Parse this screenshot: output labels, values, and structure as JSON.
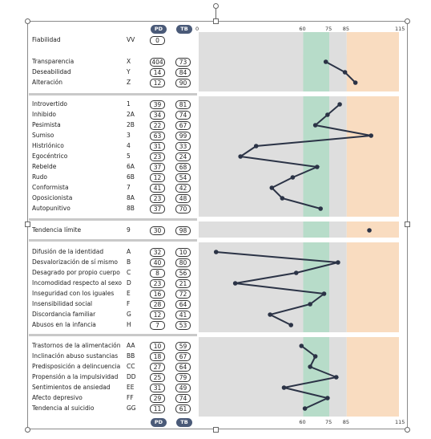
{
  "header": {
    "pd_label": "PD",
    "tb_label": "TB"
  },
  "footer": {
    "pd_label": "PD",
    "tb_label": "TB"
  },
  "scale": {
    "min_label": "0",
    "ticks": [
      60,
      75,
      85,
      115
    ]
  },
  "colors": {
    "pill": "#4a5a78",
    "gray_zone": "#dedede",
    "green_zone": "#b7dcc9",
    "orange_zone": "#f9dcc0",
    "line": "#2b3346"
  },
  "sections": [
    {
      "id": "validity",
      "rows": [
        {
          "name": "Fiabilidad",
          "code": "VV",
          "pd": "0",
          "tb": null
        }
      ]
    },
    {
      "id": "control",
      "rows": [
        {
          "name": "Transparencia",
          "code": "X",
          "pd": "404",
          "tb": "73"
        },
        {
          "name": "Deseabilidad",
          "code": "Y",
          "pd": "14",
          "tb": "84"
        },
        {
          "name": "Alteración",
          "code": "Z",
          "pd": "12",
          "tb": "90"
        }
      ]
    },
    {
      "id": "personality",
      "rows": [
        {
          "name": "Introvertido",
          "code": "1",
          "pd": "39",
          "tb": "81"
        },
        {
          "name": "Inhibido",
          "code": "2A",
          "pd": "34",
          "tb": "74"
        },
        {
          "name": "Pesimista",
          "code": "2B",
          "pd": "22",
          "tb": "67"
        },
        {
          "name": "Sumiso",
          "code": "3",
          "pd": "63",
          "tb": "99"
        },
        {
          "name": "Histriónico",
          "code": "4",
          "pd": "31",
          "tb": "33"
        },
        {
          "name": "Egocéntrico",
          "code": "5",
          "pd": "23",
          "tb": "24"
        },
        {
          "name": "Rebelde",
          "code": "6A",
          "pd": "37",
          "tb": "68"
        },
        {
          "name": "Rudo",
          "code": "6B",
          "pd": "12",
          "tb": "54"
        },
        {
          "name": "Conformista",
          "code": "7",
          "pd": "41",
          "tb": "42"
        },
        {
          "name": "Oposicionista",
          "code": "8A",
          "pd": "23",
          "tb": "48"
        },
        {
          "name": "Autopunitivo",
          "code": "8B",
          "pd": "37",
          "tb": "70"
        }
      ]
    },
    {
      "id": "limit",
      "rows": [
        {
          "name": "Tendencia límite",
          "code": "9",
          "pd": "30",
          "tb": "98"
        }
      ]
    },
    {
      "id": "concerns",
      "rows": [
        {
          "name": "Difusión de la identidad",
          "code": "A",
          "pd": "32",
          "tb": "10"
        },
        {
          "name": "Desvalorización de sí mismo",
          "code": "B",
          "pd": "40",
          "tb": "80"
        },
        {
          "name": "Desagrado por propio cuerpo",
          "code": "C",
          "pd": "8",
          "tb": "56"
        },
        {
          "name": "Incomodidad respecto al sexo",
          "code": "D",
          "pd": "23",
          "tb": "21"
        },
        {
          "name": "Inseguridad con los iguales",
          "code": "E",
          "pd": "16",
          "tb": "72"
        },
        {
          "name": "Insensibilidad social",
          "code": "F",
          "pd": "28",
          "tb": "64"
        },
        {
          "name": "Discordancia familiar",
          "code": "G",
          "pd": "12",
          "tb": "41"
        },
        {
          "name": "Abusos en la infancia",
          "code": "H",
          "pd": "7",
          "tb": "53"
        }
      ]
    },
    {
      "id": "syndromes",
      "rows": [
        {
          "name": "Trastornos de la alimentación",
          "code": "AA",
          "pd": "10",
          "tb": "59"
        },
        {
          "name": "Inclinación abuso sustancias",
          "code": "BB",
          "pd": "18",
          "tb": "67"
        },
        {
          "name": "Predisposición a delincuencia",
          "code": "CC",
          "pd": "27",
          "tb": "64"
        },
        {
          "name": "Propensión a la impulsividad",
          "code": "DD",
          "pd": "25",
          "tb": "79"
        },
        {
          "name": "Sentimientos de ansiedad",
          "code": "EE",
          "pd": "31",
          "tb": "49"
        },
        {
          "name": "Afecto depresivo",
          "code": "FF",
          "pd": "29",
          "tb": "74"
        },
        {
          "name": "Tendencia al suicidio",
          "code": "GG",
          "pd": "11",
          "tb": "61"
        }
      ]
    }
  ],
  "chart_data": {
    "type": "line",
    "orientation": "horizontal-profile",
    "xlim": [
      0,
      115
    ],
    "zones": [
      {
        "from": 0,
        "to": 60,
        "label": "gray"
      },
      {
        "from": 60,
        "to": 75,
        "label": "green"
      },
      {
        "from": 75,
        "to": 85,
        "label": "gray"
      },
      {
        "from": 85,
        "to": 115,
        "label": "orange"
      }
    ],
    "profiles": [
      {
        "section": "control",
        "values": [
          73,
          84,
          90
        ]
      },
      {
        "section": "personality",
        "values": [
          81,
          74,
          67,
          99,
          33,
          24,
          68,
          54,
          42,
          48,
          70
        ]
      },
      {
        "section": "limit",
        "values": [
          98
        ]
      },
      {
        "section": "concerns",
        "values": [
          10,
          80,
          56,
          21,
          72,
          64,
          41,
          53
        ]
      },
      {
        "section": "syndromes",
        "values": [
          59,
          67,
          64,
          79,
          49,
          74,
          61
        ]
      }
    ]
  }
}
